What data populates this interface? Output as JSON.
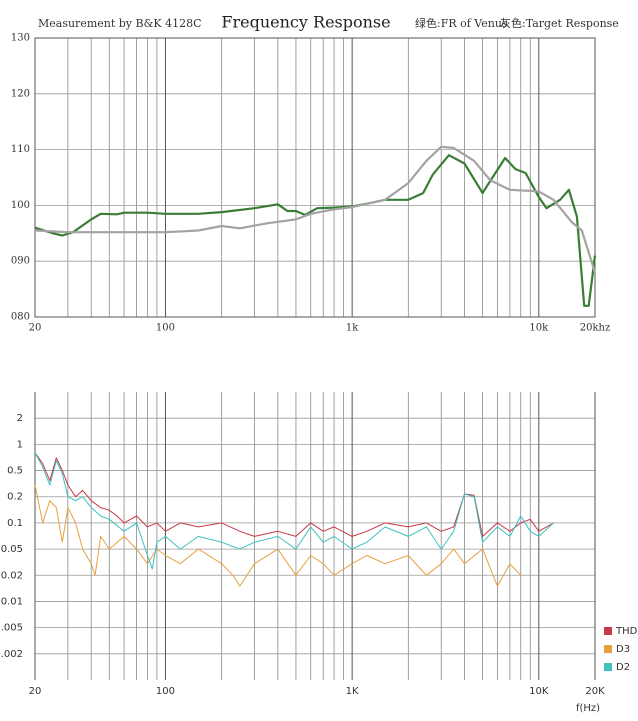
{
  "chart_data": [
    {
      "type": "line",
      "title": "Frequency Response",
      "subtitle": "Measurement by B&K 4128C",
      "xscale": "log",
      "xlim": [
        20,
        20000
      ],
      "xticks": [
        20,
        100,
        {
          "value": 1000,
          "label": "1k"
        },
        {
          "value": 10000,
          "label": "10k"
        },
        {
          "value": 20000,
          "label": "20khz"
        }
      ],
      "ylim": [
        80,
        130
      ],
      "yticks": [
        {
          "value": 80,
          "label": "080"
        },
        {
          "value": 90,
          "label": "090"
        },
        100,
        110,
        120,
        130
      ],
      "grid": true,
      "legend": "top",
      "series": [
        {
          "name": "绿色:FR of Venus",
          "color": "#3a7d34",
          "x": [
            20,
            25,
            28,
            32,
            40,
            45,
            55,
            60,
            80,
            100,
            150,
            200,
            300,
            400,
            450,
            500,
            560,
            650,
            800,
            1000,
            1200,
            1500,
            2000,
            2400,
            2700,
            3300,
            4000,
            5000,
            5400,
            6600,
            7500,
            8500,
            10000,
            11000,
            13000,
            14500,
            16000,
            17500,
            18500,
            20000
          ],
          "values": [
            96,
            95,
            94.6,
            95.2,
            97.5,
            98.5,
            98.4,
            98.7,
            98.7,
            98.5,
            98.5,
            98.8,
            99.5,
            100.2,
            99,
            99,
            98.3,
            99.5,
            99.6,
            99.8,
            100.3,
            101,
            101,
            102.2,
            105.5,
            109,
            107.5,
            102.2,
            104,
            108.5,
            106.5,
            105.8,
            101.5,
            99.5,
            101,
            102.8,
            98,
            82,
            82,
            91
          ]
        },
        {
          "name": "灰色:Target Response",
          "color": "#a3a3a3",
          "x": [
            20,
            30,
            100,
            150,
            200,
            250,
            350,
            500,
            600,
            800,
            1000,
            1500,
            2000,
            2500,
            3000,
            3500,
            4500,
            5500,
            7000,
            10000,
            12000,
            15000,
            17000,
            20000
          ],
          "values": [
            95.5,
            95.2,
            95.2,
            95.5,
            96.3,
            95.9,
            96.8,
            97.5,
            98.5,
            99.3,
            99.7,
            101,
            104,
            108,
            110.5,
            110.3,
            108,
            104.5,
            102.8,
            102.5,
            101,
            97,
            95.5,
            88
          ]
        }
      ]
    },
    {
      "type": "line",
      "xlabel": "f(Hz)",
      "xscale": "log",
      "xlim": [
        20,
        20000
      ],
      "xticks": [
        20,
        100,
        {
          "value": 1000,
          "label": "1K"
        },
        {
          "value": 10000,
          "label": "10K"
        },
        {
          "value": 20000,
          "label": "20K"
        }
      ],
      "yscale": "log",
      "ylim": [
        0.001,
        5
      ],
      "yticks": [
        2,
        1,
        0.5,
        0.2,
        0.1,
        0.05,
        0.02,
        0.01,
        0.005,
        0.002
      ],
      "grid": true,
      "legend": "lower right",
      "series": [
        {
          "name": "THD",
          "color": "#c8384a",
          "x": [
            20,
            22,
            24,
            26,
            28,
            30,
            33,
            36,
            40,
            45,
            50,
            55,
            60,
            70,
            80,
            90,
            100,
            120,
            150,
            200,
            250,
            300,
            400,
            500,
            600,
            700,
            800,
            1000,
            1200,
            1500,
            2000,
            2500,
            3000,
            3500,
            4000,
            4500,
            5000,
            6000,
            7000,
            8000,
            9000,
            10000,
            12000
          ],
          "values": [
            0.8,
            0.6,
            0.35,
            0.7,
            0.5,
            0.3,
            0.2,
            0.25,
            0.18,
            0.15,
            0.14,
            0.12,
            0.1,
            0.12,
            0.09,
            0.1,
            0.08,
            0.1,
            0.09,
            0.1,
            0.08,
            0.07,
            0.08,
            0.07,
            0.1,
            0.08,
            0.09,
            0.07,
            0.08,
            0.1,
            0.09,
            0.1,
            0.08,
            0.09,
            0.22,
            0.21,
            0.07,
            0.1,
            0.08,
            0.1,
            0.11,
            0.08,
            0.1
          ]
        },
        {
          "name": "D3",
          "color": "#e8a040",
          "x": [
            20,
            22,
            24,
            26,
            28,
            30,
            33,
            36,
            40,
            42,
            45,
            50,
            60,
            70,
            80,
            90,
            100,
            120,
            150,
            200,
            230,
            250,
            300,
            400,
            500,
            600,
            700,
            800,
            1000,
            1200,
            1500,
            2000,
            2500,
            3000,
            3500,
            4000,
            5000,
            6000,
            7000,
            8000
          ],
          "values": [
            0.3,
            0.1,
            0.18,
            0.15,
            0.06,
            0.15,
            0.1,
            0.05,
            0.03,
            0.02,
            0.07,
            0.05,
            0.07,
            0.05,
            0.03,
            0.05,
            0.04,
            0.03,
            0.05,
            0.03,
            0.02,
            0.015,
            0.03,
            0.05,
            0.02,
            0.04,
            0.03,
            0.02,
            0.03,
            0.04,
            0.03,
            0.04,
            0.02,
            0.03,
            0.05,
            0.03,
            0.05,
            0.015,
            0.03,
            0.02
          ]
        },
        {
          "name": "D2",
          "color": "#3cc0c0",
          "x": [
            20,
            22,
            24,
            26,
            28,
            30,
            33,
            36,
            40,
            45,
            50,
            60,
            70,
            80,
            85,
            90,
            100,
            120,
            150,
            200,
            250,
            300,
            400,
            500,
            600,
            700,
            800,
            1000,
            1200,
            1500,
            2000,
            2500,
            3000,
            3500,
            4000,
            4500,
            5000,
            6000,
            7000,
            8000,
            9000,
            10000,
            12000
          ],
          "values": [
            0.8,
            0.55,
            0.3,
            0.65,
            0.45,
            0.2,
            0.18,
            0.2,
            0.15,
            0.12,
            0.11,
            0.08,
            0.1,
            0.04,
            0.025,
            0.06,
            0.07,
            0.05,
            0.07,
            0.06,
            0.05,
            0.06,
            0.07,
            0.05,
            0.09,
            0.06,
            0.07,
            0.05,
            0.06,
            0.09,
            0.07,
            0.09,
            0.05,
            0.08,
            0.22,
            0.2,
            0.06,
            0.09,
            0.07,
            0.12,
            0.08,
            0.07,
            0.1
          ]
        }
      ]
    }
  ]
}
